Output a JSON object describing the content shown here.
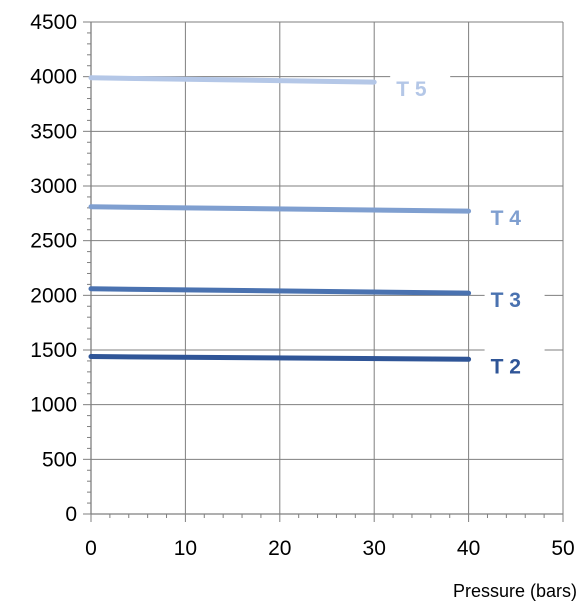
{
  "chart_data": {
    "type": "line",
    "title": "",
    "xlabel": "Pressure (bars)",
    "ylabel": "",
    "xlim": [
      0,
      50
    ],
    "ylim": [
      0,
      4500
    ],
    "x_ticks": [
      0,
      10,
      20,
      30,
      40,
      50
    ],
    "y_ticks": [
      0,
      500,
      1000,
      1500,
      2000,
      2500,
      3000,
      3500,
      4000,
      4500
    ],
    "x_tick_labels": [
      "0",
      "10",
      "20",
      "30",
      "40",
      "50"
    ],
    "y_tick_labels": [
      "0",
      "500",
      "1000",
      "1500",
      "2000",
      "2500",
      "3000",
      "3500",
      "4000",
      "4500"
    ],
    "grid": true,
    "legend": "none (series labelled inline at right end of lines)",
    "series": [
      {
        "name": "T 5",
        "x": [
          0,
          30
        ],
        "y": [
          3990,
          3950
        ],
        "color": "#b4c7e7"
      },
      {
        "name": "T 4",
        "x": [
          0,
          40
        ],
        "y": [
          2810,
          2770
        ],
        "color": "#7f9fd0"
      },
      {
        "name": "T 3",
        "x": [
          0,
          40
        ],
        "y": [
          2060,
          2020
        ],
        "color": "#4a72b0"
      },
      {
        "name": "T 2",
        "x": [
          0,
          40
        ],
        "y": [
          1440,
          1415
        ],
        "color": "#2f5597"
      }
    ]
  }
}
